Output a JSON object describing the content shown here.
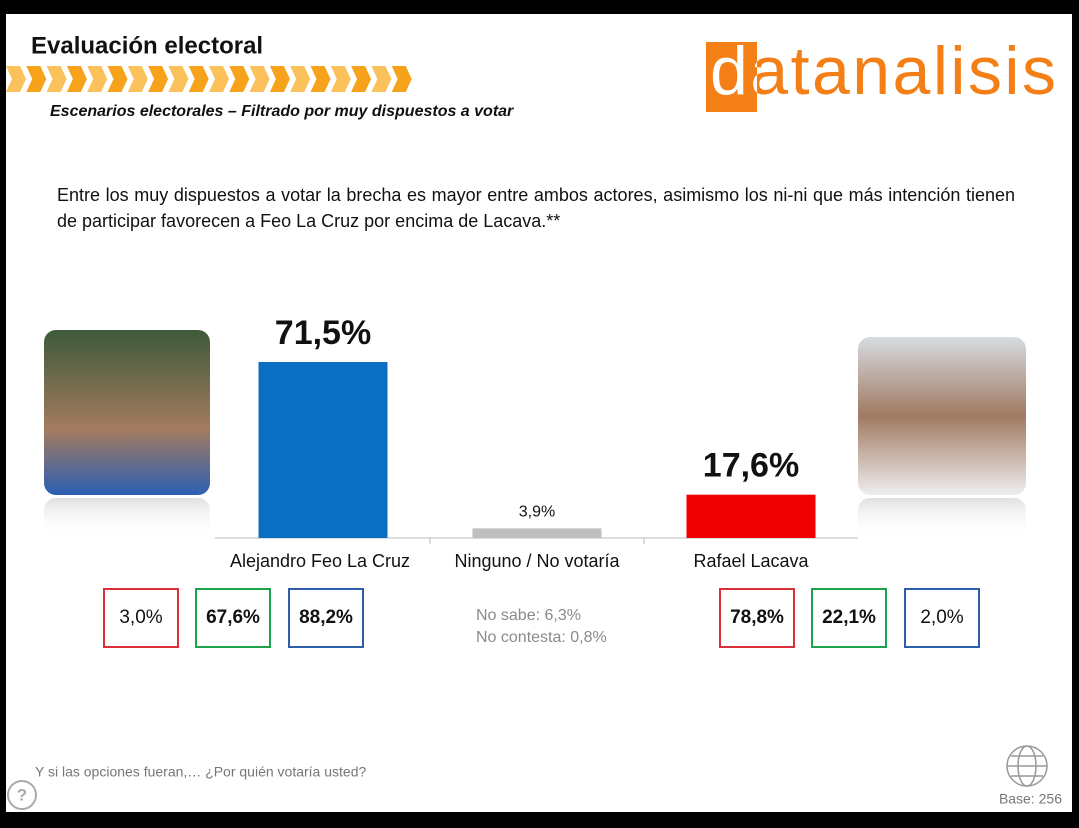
{
  "header": {
    "title": "Evaluación electoral",
    "subtitle": "Escenarios electorales – Filtrado por muy dispuestos a votar",
    "logo": "datanalisis"
  },
  "description": "Entre los muy dispuestos a votar la brecha es mayor entre ambos actores, asimismo los ni-ni que más intención tienen de participar favorecen a Feo La Cruz por encima de Lacava.**",
  "chart_data": {
    "type": "bar",
    "categories": [
      "Alejandro Feo La Cruz",
      "Ninguno / No votaría",
      "Rafael Lacava"
    ],
    "values": [
      71.5,
      3.9,
      17.6
    ],
    "value_labels": [
      "71,5%",
      "3,9%",
      "17,6%"
    ],
    "colors": [
      "#0a6fc2",
      "#bfbfbf",
      "#f00000"
    ]
  },
  "breakdown": {
    "left": [
      "3,0%",
      "67,6%",
      "88,2%"
    ],
    "right": [
      "78,8%",
      "22,1%",
      "2,0%"
    ]
  },
  "notes": [
    "No sabe: 6,3%",
    "No contesta: 0,8%"
  ],
  "footer": {
    "question": "Y si las opciones fueran,… ¿Por quién votaría usted?",
    "help": "?",
    "base": "Base: 256"
  }
}
